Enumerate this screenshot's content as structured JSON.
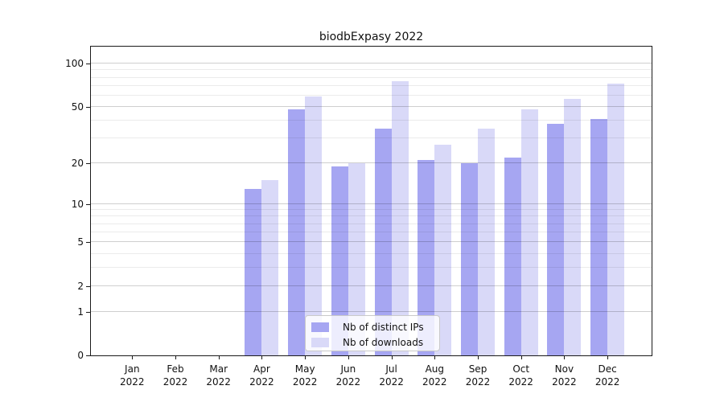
{
  "title": "biodbExpasy 2022",
  "chart_data": {
    "type": "bar",
    "title": "biodbExpasy 2022",
    "categories": [
      "Jan",
      "Feb",
      "Mar",
      "Apr",
      "May",
      "Jun",
      "Jul",
      "Aug",
      "Sep",
      "Oct",
      "Nov",
      "Dec"
    ],
    "year_label": "2022",
    "series": [
      {
        "name": "Nb of distinct IPs",
        "color": "#a6a6f2",
        "values": [
          0,
          0,
          0,
          13,
          48,
          19,
          35,
          21,
          20,
          22,
          38,
          41
        ]
      },
      {
        "name": "Nb of downloads",
        "color": "#d9d9f8",
        "values": [
          0,
          0,
          0,
          15,
          59,
          20,
          76,
          27,
          35,
          48,
          57,
          73
        ]
      }
    ],
    "y_axis": {
      "scale": "log10(value+1)",
      "major_ticks": [
        100,
        50,
        20,
        10,
        5,
        2,
        1,
        0
      ],
      "minor_gridlines": [
        90,
        80,
        70,
        60,
        40,
        30,
        9,
        8,
        7,
        6,
        4,
        3
      ],
      "range": [
        0,
        131
      ]
    },
    "x_axis": {
      "label_line2": "2022"
    },
    "legend_position": "lower center",
    "grid": true,
    "colors": {
      "grid_major": "#cfcfcf",
      "grid_minor": "#e9e9e9",
      "spine": "#1a1a1a"
    }
  }
}
